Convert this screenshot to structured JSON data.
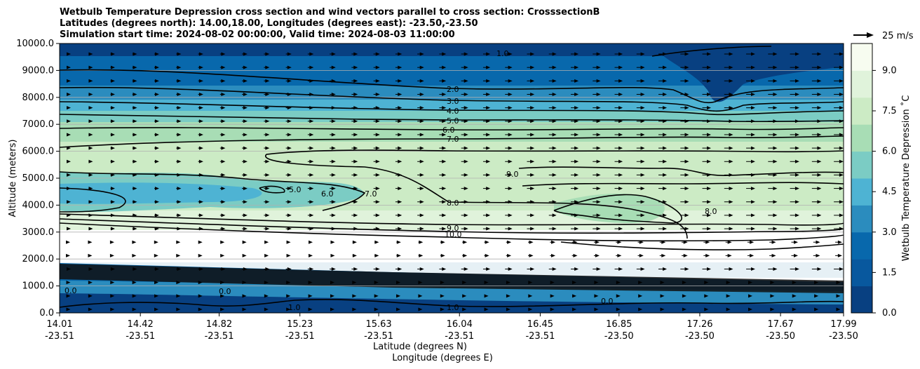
{
  "chart_data": {
    "type": "contour",
    "title_lines": [
      "Wetbulb Temperature Depression cross section and wind vectors parallel to cross section: CrosssectionB",
      "Latitudes (degrees north): 14.00,18.00, Longitudes (degrees east): -23.50,-23.50",
      "Simulation start time: 2024-08-02 00:00:00, Valid time: 2024-08-03 11:00:00"
    ],
    "xlabel_primary": "Latitude (degrees N)",
    "xlabel_secondary": "Longitude (degrees E)",
    "ylabel": "Altitude (meters)",
    "ylim": [
      0,
      10000
    ],
    "y_ticks": [
      "0.0",
      "1000.0",
      "2000.0",
      "3000.0",
      "4000.0",
      "5000.0",
      "6000.0",
      "7000.0",
      "8000.0",
      "9000.0",
      "10000.0"
    ],
    "x_ticks_lat": [
      "14.01",
      "14.42",
      "14.82",
      "15.23",
      "15.63",
      "16.04",
      "16.45",
      "16.85",
      "17.26",
      "17.67",
      "17.99"
    ],
    "x_ticks_lon": [
      "-23.51",
      "-23.51",
      "-23.51",
      "-23.51",
      "-23.51",
      "-23.51",
      "-23.51",
      "-23.50",
      "-23.50",
      "-23.50",
      "-23.50"
    ],
    "colorbar": {
      "label": "Wetbulb Temperature Depression ˚C",
      "range": [
        0,
        10
      ],
      "ticks": [
        "0.0",
        "1.5",
        "3.0",
        "4.5",
        "6.0",
        "7.5",
        "9.0"
      ],
      "colors": [
        "#084081",
        "#0868ac",
        "#2b8cbe",
        "#4eb3d3",
        "#7bccc4",
        "#a8ddb5",
        "#ccebc5",
        "#e0f3db",
        "#f7fcf0"
      ]
    },
    "wind_key": "25 m/s",
    "contour_labels": [
      "1.0",
      "2.0",
      "3.0",
      "4.0",
      "5.0",
      "6.0",
      "7.0",
      "8.0",
      "9.0",
      "10.0",
      "0.0"
    ],
    "grid": true
  }
}
